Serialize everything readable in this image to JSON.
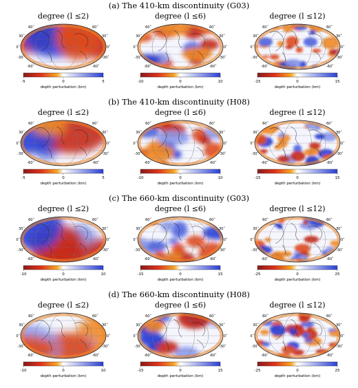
{
  "figure": {
    "rows": [
      {
        "title": "(a)  The 410-km discontinuity (G03)",
        "panels": [
          {
            "degree_label": "degree (l ≤2)",
            "colorbar": {
              "min": "-5",
              "mid": "0",
              "max": "5",
              "label": "depth perturbation (km)"
            }
          },
          {
            "degree_label": "degree (l ≤6)",
            "colorbar": {
              "min": "-10",
              "mid": "0",
              "max": "10",
              "label": "depth perturbation (km)"
            }
          },
          {
            "degree_label": "degree (l ≤12)",
            "colorbar": {
              "min": "-15",
              "mid": "0",
              "max": "15",
              "label": "depth perturbation (km)"
            }
          }
        ]
      },
      {
        "title": "(b)  The 410-km discontinuity (H08)",
        "panels": [
          {
            "degree_label": "degree (l ≤2)",
            "colorbar": {
              "min": "-5",
              "mid": "0",
              "max": "5",
              "label": "depth perturbation (km)"
            }
          },
          {
            "degree_label": "degree (l ≤6)",
            "colorbar": {
              "min": "-10",
              "mid": "0",
              "max": "10",
              "label": "depth perturbation (km)"
            }
          },
          {
            "degree_label": "degree (l ≤12)",
            "colorbar": {
              "min": "-15",
              "mid": "0",
              "max": "15",
              "label": "depth perturbation (km)"
            }
          }
        ]
      },
      {
        "title": "(c)  The 660-km discontinuity (G03)",
        "panels": [
          {
            "degree_label": "degree (l ≤2)",
            "colorbar": {
              "min": "-10",
              "mid": "0",
              "max": "10",
              "label": "depth perturbation (km)"
            }
          },
          {
            "degree_label": "degree (l ≤6)",
            "colorbar": {
              "min": "-15",
              "mid": "0",
              "max": "15",
              "label": "depth perturbation (km)"
            }
          },
          {
            "degree_label": "degree (l ≤12)",
            "colorbar": {
              "min": "-25",
              "mid": "0",
              "max": "25",
              "label": "depth perturbation (km)"
            }
          }
        ]
      },
      {
        "title": "(d)  The 660-km discontinuity (H08)",
        "panels": [
          {
            "degree_label": "degree (l ≤2)",
            "colorbar": {
              "min": "-10",
              "mid": "0",
              "max": "10",
              "label": "depth perturbation (km)"
            }
          },
          {
            "degree_label": "degree (l ≤6)",
            "colorbar": {
              "min": "-15",
              "mid": "0",
              "max": "15",
              "label": "depth perturbation (km)"
            }
          },
          {
            "degree_label": "degree (l ≤12)",
            "colorbar": {
              "min": "-25",
              "mid": "0",
              "max": "25",
              "label": "depth perturbation (km)"
            }
          }
        ]
      }
    ],
    "lat_labels": {
      "n60": "60˚",
      "n30": "30˚",
      "eq": "0˚",
      "s30": "-30˚",
      "s60": "-60˚"
    },
    "colormap": {
      "negative": "#8b1a1a",
      "low": "#e0321b",
      "mid_low": "#f5a623",
      "zero": "#ffffff",
      "positive": "#2a3fd6"
    }
  }
}
